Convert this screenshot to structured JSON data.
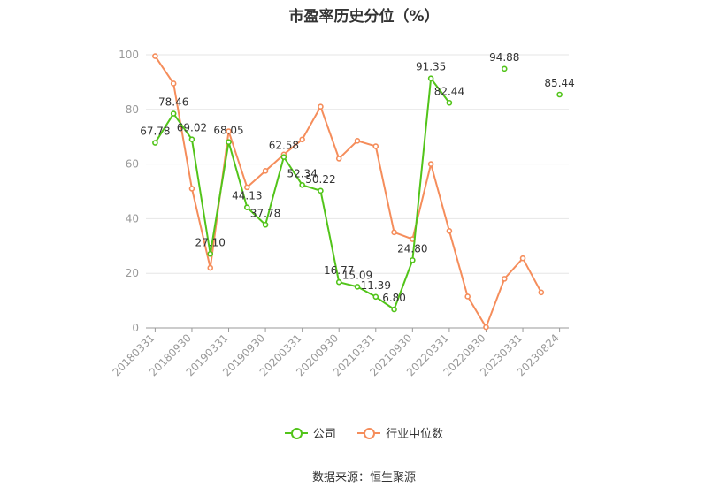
{
  "title": "市盈率历史分位（%）",
  "source": "数据来源：恒生聚源",
  "legend": {
    "company": "公司",
    "industry": "行业中位数"
  },
  "colors": {
    "company": "#52c41a",
    "industry": "#f58d5b"
  },
  "chart_data": {
    "type": "line",
    "title": "市盈率历史分位（%）",
    "categories": [
      "20180331",
      "20180630",
      "20180930",
      "20181231",
      "20190331",
      "20190630",
      "20190930",
      "20191231",
      "20200331",
      "20200630",
      "20200930",
      "20201231",
      "20210331",
      "20210630",
      "20210930",
      "20211231",
      "20220331",
      "20220630",
      "20220930",
      "20221231",
      "20230331",
      "20230630",
      "20230824"
    ],
    "x_tick_labels": [
      "20180331",
      "20180930",
      "20190331",
      "20190930",
      "20200331",
      "20200930",
      "20210331",
      "20210930",
      "20220331",
      "20220930",
      "20230331",
      "20230824"
    ],
    "ylim": [
      0,
      100
    ],
    "y_ticks": [
      0,
      20,
      40,
      60,
      80,
      100
    ],
    "grid": true,
    "legend_position": "bottom",
    "series": [
      {
        "name": "公司",
        "values": [
          67.78,
          78.46,
          69.02,
          27.1,
          68.05,
          44.13,
          37.78,
          62.58,
          52.34,
          50.22,
          16.77,
          15.09,
          11.39,
          6.8,
          24.8,
          91.35,
          82.44,
          null,
          null,
          94.88,
          null,
          null,
          85.44
        ],
        "labels": [
          "67.78",
          "78.46",
          "69.02",
          "27.10",
          "68.05",
          "44.13",
          "37.78",
          "62.58",
          "52.34",
          "50.22",
          "16.77",
          "15.09",
          "11.39",
          "6.80",
          "24.80",
          "91.35",
          "82.44",
          "",
          "",
          "94.88",
          "",
          "",
          "85.44"
        ]
      },
      {
        "name": "行业中位数",
        "values": [
          99.5,
          89.5,
          51.0,
          22.0,
          72.0,
          51.5,
          57.5,
          63.5,
          69.0,
          81.0,
          62.0,
          68.5,
          66.5,
          35.0,
          32.5,
          60.0,
          35.5,
          11.5,
          0.3,
          18.0,
          25.5,
          13.0,
          null
        ]
      }
    ]
  }
}
